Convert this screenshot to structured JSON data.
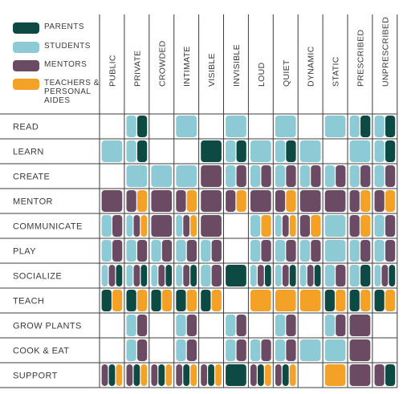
{
  "colors": {
    "parents": "#0e4a44",
    "students": "#8ccad6",
    "mentors": "#6b4a63",
    "teachers": "#f4a227",
    "grid": "#3c3c3c"
  },
  "legend": [
    {
      "key": "parents",
      "label": "PARENTS"
    },
    {
      "key": "students",
      "label": "STUDENTS"
    },
    {
      "key": "mentors",
      "label": "MENTORS"
    },
    {
      "key": "teachers",
      "label": "TEACHERS &\nPERSONAL\nAIDES"
    }
  ],
  "chart_data": {
    "type": "table",
    "columns": [
      "PUBLIC",
      "PRIVATE",
      "CROWDED",
      "INTIMATE",
      "VISIBLE",
      "INVISIBLE",
      "LOUD",
      "QUIET",
      "DYNAMIC",
      "STATIC",
      "PRESCRIBED",
      "UNPRESCRIBED"
    ],
    "rows": [
      "READ",
      "LEARN",
      "CREATE",
      "MENTOR",
      "COMMUNICATE",
      "PLAY",
      "SOCIALIZE",
      "TEACH",
      "GROW PLANTS",
      "COOK & EAT",
      "SUPPORT"
    ],
    "series_order": [
      "students",
      "mentors",
      "parents",
      "teachers"
    ],
    "cells": [
      {
        "row": 0,
        "col": 0,
        "groups": []
      },
      {
        "row": 0,
        "col": 1,
        "groups": [
          "students",
          "parents"
        ]
      },
      {
        "row": 0,
        "col": 2,
        "groups": []
      },
      {
        "row": 0,
        "col": 3,
        "groups": [
          "students"
        ]
      },
      {
        "row": 0,
        "col": 4,
        "groups": []
      },
      {
        "row": 0,
        "col": 5,
        "groups": [
          "students"
        ]
      },
      {
        "row": 0,
        "col": 6,
        "groups": []
      },
      {
        "row": 0,
        "col": 7,
        "groups": [
          "students"
        ]
      },
      {
        "row": 0,
        "col": 8,
        "groups": []
      },
      {
        "row": 0,
        "col": 9,
        "groups": [
          "students"
        ]
      },
      {
        "row": 0,
        "col": 10,
        "groups": [
          "students",
          "parents"
        ]
      },
      {
        "row": 0,
        "col": 11,
        "groups": [
          "students",
          "parents"
        ]
      },
      {
        "row": 1,
        "col": 0,
        "groups": [
          "students"
        ]
      },
      {
        "row": 1,
        "col": 1,
        "groups": [
          "students",
          "parents"
        ]
      },
      {
        "row": 1,
        "col": 2,
        "groups": []
      },
      {
        "row": 1,
        "col": 3,
        "groups": []
      },
      {
        "row": 1,
        "col": 4,
        "groups": [
          "parents"
        ]
      },
      {
        "row": 1,
        "col": 5,
        "groups": [
          "students",
          "parents"
        ]
      },
      {
        "row": 1,
        "col": 6,
        "groups": [
          "students"
        ]
      },
      {
        "row": 1,
        "col": 7,
        "groups": [
          "students",
          "parents"
        ]
      },
      {
        "row": 1,
        "col": 8,
        "groups": [
          "students"
        ]
      },
      {
        "row": 1,
        "col": 9,
        "groups": []
      },
      {
        "row": 1,
        "col": 10,
        "groups": [
          "students"
        ]
      },
      {
        "row": 1,
        "col": 11,
        "groups": [
          "students",
          "parents"
        ]
      },
      {
        "row": 2,
        "col": 0,
        "groups": []
      },
      {
        "row": 2,
        "col": 1,
        "groups": [
          "students"
        ]
      },
      {
        "row": 2,
        "col": 2,
        "groups": [
          "students"
        ]
      },
      {
        "row": 2,
        "col": 3,
        "groups": [
          "students"
        ]
      },
      {
        "row": 2,
        "col": 4,
        "groups": [
          "mentors"
        ]
      },
      {
        "row": 2,
        "col": 5,
        "groups": [
          "students",
          "mentors"
        ]
      },
      {
        "row": 2,
        "col": 6,
        "groups": [
          "students",
          "mentors"
        ]
      },
      {
        "row": 2,
        "col": 7,
        "groups": [
          "students",
          "mentors"
        ]
      },
      {
        "row": 2,
        "col": 8,
        "groups": [
          "students",
          "mentors"
        ]
      },
      {
        "row": 2,
        "col": 9,
        "groups": [
          "students",
          "mentors"
        ]
      },
      {
        "row": 2,
        "col": 10,
        "groups": [
          "students",
          "mentors"
        ]
      },
      {
        "row": 2,
        "col": 11,
        "groups": [
          "students",
          "mentors"
        ]
      },
      {
        "row": 3,
        "col": 0,
        "groups": [
          "mentors"
        ]
      },
      {
        "row": 3,
        "col": 1,
        "groups": [
          "mentors",
          "teachers"
        ]
      },
      {
        "row": 3,
        "col": 2,
        "groups": [
          "mentors"
        ]
      },
      {
        "row": 3,
        "col": 3,
        "groups": [
          "mentors",
          "teachers"
        ]
      },
      {
        "row": 3,
        "col": 4,
        "groups": [
          "mentors"
        ]
      },
      {
        "row": 3,
        "col": 5,
        "groups": [
          "mentors",
          "teachers"
        ]
      },
      {
        "row": 3,
        "col": 6,
        "groups": [
          "mentors"
        ]
      },
      {
        "row": 3,
        "col": 7,
        "groups": [
          "mentors",
          "teachers"
        ]
      },
      {
        "row": 3,
        "col": 8,
        "groups": [
          "mentors"
        ]
      },
      {
        "row": 3,
        "col": 9,
        "groups": [
          "mentors"
        ]
      },
      {
        "row": 3,
        "col": 10,
        "groups": [
          "mentors",
          "teachers"
        ]
      },
      {
        "row": 3,
        "col": 11,
        "groups": [
          "mentors",
          "teachers"
        ]
      },
      {
        "row": 4,
        "col": 0,
        "groups": [
          "students",
          "mentors"
        ]
      },
      {
        "row": 4,
        "col": 1,
        "groups": [
          "students",
          "mentors",
          "teachers"
        ]
      },
      {
        "row": 4,
        "col": 2,
        "groups": [
          "mentors"
        ]
      },
      {
        "row": 4,
        "col": 3,
        "groups": [
          "students",
          "mentors",
          "teachers"
        ]
      },
      {
        "row": 4,
        "col": 4,
        "groups": [
          "mentors"
        ]
      },
      {
        "row": 4,
        "col": 5,
        "groups": []
      },
      {
        "row": 4,
        "col": 6,
        "groups": [
          "students",
          "teachers"
        ]
      },
      {
        "row": 4,
        "col": 7,
        "groups": [
          "students",
          "mentors",
          "teachers"
        ]
      },
      {
        "row": 4,
        "col": 8,
        "groups": [
          "mentors",
          "teachers"
        ]
      },
      {
        "row": 4,
        "col": 9,
        "groups": [
          "students"
        ]
      },
      {
        "row": 4,
        "col": 10,
        "groups": [
          "mentors",
          "teachers"
        ]
      },
      {
        "row": 4,
        "col": 11,
        "groups": [
          "students",
          "mentors"
        ]
      },
      {
        "row": 5,
        "col": 0,
        "groups": [
          "students",
          "mentors"
        ]
      },
      {
        "row": 5,
        "col": 1,
        "groups": [
          "students",
          "mentors"
        ]
      },
      {
        "row": 5,
        "col": 2,
        "groups": [
          "students",
          "mentors"
        ]
      },
      {
        "row": 5,
        "col": 3,
        "groups": [
          "students",
          "mentors"
        ]
      },
      {
        "row": 5,
        "col": 4,
        "groups": [
          "students",
          "mentors"
        ]
      },
      {
        "row": 5,
        "col": 5,
        "groups": []
      },
      {
        "row": 5,
        "col": 6,
        "groups": [
          "students",
          "mentors"
        ]
      },
      {
        "row": 5,
        "col": 7,
        "groups": [
          "students",
          "mentors"
        ]
      },
      {
        "row": 5,
        "col": 8,
        "groups": [
          "students",
          "mentors"
        ]
      },
      {
        "row": 5,
        "col": 9,
        "groups": [
          "students"
        ]
      },
      {
        "row": 5,
        "col": 10,
        "groups": [
          "students",
          "mentors"
        ]
      },
      {
        "row": 5,
        "col": 11,
        "groups": [
          "students",
          "mentors"
        ]
      },
      {
        "row": 6,
        "col": 0,
        "groups": [
          "students",
          "mentors",
          "parents"
        ]
      },
      {
        "row": 6,
        "col": 1,
        "groups": [
          "students",
          "mentors",
          "parents"
        ]
      },
      {
        "row": 6,
        "col": 2,
        "groups": [
          "students",
          "mentors",
          "parents"
        ]
      },
      {
        "row": 6,
        "col": 3,
        "groups": [
          "students",
          "mentors",
          "parents"
        ]
      },
      {
        "row": 6,
        "col": 4,
        "groups": [
          "students",
          "mentors"
        ]
      },
      {
        "row": 6,
        "col": 5,
        "groups": [
          "parents"
        ]
      },
      {
        "row": 6,
        "col": 6,
        "groups": [
          "students",
          "mentors",
          "parents"
        ]
      },
      {
        "row": 6,
        "col": 7,
        "groups": [
          "students",
          "mentors",
          "parents"
        ]
      },
      {
        "row": 6,
        "col": 8,
        "groups": [
          "students",
          "mentors",
          "parents"
        ]
      },
      {
        "row": 6,
        "col": 9,
        "groups": [
          "students",
          "mentors"
        ]
      },
      {
        "row": 6,
        "col": 10,
        "groups": [
          "students",
          "parents"
        ]
      },
      {
        "row": 6,
        "col": 11,
        "groups": [
          "students",
          "mentors",
          "parents"
        ]
      },
      {
        "row": 7,
        "col": 0,
        "groups": [
          "teachers",
          "parents"
        ]
      },
      {
        "row": 7,
        "col": 1,
        "groups": [
          "teachers",
          "parents"
        ]
      },
      {
        "row": 7,
        "col": 2,
        "groups": [
          "teachers",
          "parents"
        ]
      },
      {
        "row": 7,
        "col": 3,
        "groups": [
          "teachers",
          "parents"
        ]
      },
      {
        "row": 7,
        "col": 4,
        "groups": [
          "teachers",
          "parents"
        ]
      },
      {
        "row": 7,
        "col": 5,
        "groups": []
      },
      {
        "row": 7,
        "col": 6,
        "groups": [
          "teachers"
        ]
      },
      {
        "row": 7,
        "col": 7,
        "groups": [
          "teachers"
        ]
      },
      {
        "row": 7,
        "col": 8,
        "groups": [
          "teachers"
        ]
      },
      {
        "row": 7,
        "col": 9,
        "groups": [
          "teachers",
          "parents"
        ]
      },
      {
        "row": 7,
        "col": 10,
        "groups": [
          "teachers",
          "parents"
        ]
      },
      {
        "row": 7,
        "col": 11,
        "groups": [
          "teachers",
          "parents"
        ]
      },
      {
        "row": 8,
        "col": 0,
        "groups": []
      },
      {
        "row": 8,
        "col": 1,
        "groups": [
          "students",
          "mentors"
        ]
      },
      {
        "row": 8,
        "col": 2,
        "groups": []
      },
      {
        "row": 8,
        "col": 3,
        "groups": [
          "students",
          "mentors"
        ]
      },
      {
        "row": 8,
        "col": 4,
        "groups": []
      },
      {
        "row": 8,
        "col": 5,
        "groups": [
          "students",
          "mentors"
        ]
      },
      {
        "row": 8,
        "col": 6,
        "groups": []
      },
      {
        "row": 8,
        "col": 7,
        "groups": [
          "students",
          "mentors"
        ]
      },
      {
        "row": 8,
        "col": 8,
        "groups": []
      },
      {
        "row": 8,
        "col": 9,
        "groups": [
          "students",
          "mentors"
        ]
      },
      {
        "row": 8,
        "col": 10,
        "groups": [
          "mentors"
        ]
      },
      {
        "row": 8,
        "col": 11,
        "groups": []
      },
      {
        "row": 9,
        "col": 0,
        "groups": []
      },
      {
        "row": 9,
        "col": 1,
        "groups": [
          "students",
          "mentors"
        ]
      },
      {
        "row": 9,
        "col": 2,
        "groups": []
      },
      {
        "row": 9,
        "col": 3,
        "groups": [
          "students",
          "mentors"
        ]
      },
      {
        "row": 9,
        "col": 4,
        "groups": []
      },
      {
        "row": 9,
        "col": 5,
        "groups": [
          "students",
          "mentors"
        ]
      },
      {
        "row": 9,
        "col": 6,
        "groups": [
          "students",
          "mentors"
        ]
      },
      {
        "row": 9,
        "col": 7,
        "groups": [
          "students",
          "mentors"
        ]
      },
      {
        "row": 9,
        "col": 8,
        "groups": [
          "students"
        ]
      },
      {
        "row": 9,
        "col": 9,
        "groups": [
          "students"
        ]
      },
      {
        "row": 9,
        "col": 10,
        "groups": [
          "mentors"
        ]
      },
      {
        "row": 9,
        "col": 11,
        "groups": []
      },
      {
        "row": 10,
        "col": 0,
        "groups": [
          "mentors",
          "teachers",
          "parents"
        ]
      },
      {
        "row": 10,
        "col": 1,
        "groups": [
          "mentors",
          "teachers",
          "parents"
        ]
      },
      {
        "row": 10,
        "col": 2,
        "groups": [
          "mentors",
          "teachers",
          "parents"
        ]
      },
      {
        "row": 10,
        "col": 3,
        "groups": [
          "mentors",
          "teachers",
          "parents"
        ]
      },
      {
        "row": 10,
        "col": 4,
        "groups": [
          "mentors",
          "teachers",
          "parents"
        ]
      },
      {
        "row": 10,
        "col": 5,
        "groups": [
          "parents"
        ]
      },
      {
        "row": 10,
        "col": 6,
        "groups": [
          "mentors",
          "teachers",
          "parents"
        ]
      },
      {
        "row": 10,
        "col": 7,
        "groups": [
          "mentors",
          "teachers",
          "parents"
        ]
      },
      {
        "row": 10,
        "col": 8,
        "groups": []
      },
      {
        "row": 10,
        "col": 9,
        "groups": [
          "teachers"
        ]
      },
      {
        "row": 10,
        "col": 10,
        "groups": [
          "mentors"
        ]
      },
      {
        "row": 10,
        "col": 11,
        "groups": [
          "mentors",
          "parents"
        ]
      }
    ]
  }
}
